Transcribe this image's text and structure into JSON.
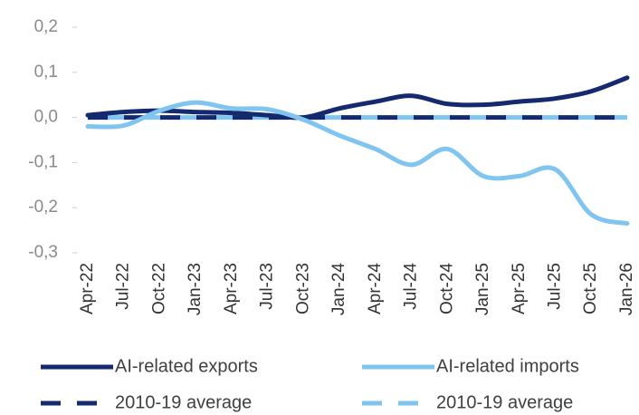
{
  "chart_data": {
    "type": "line",
    "categories": [
      "Apr-22",
      "Jul-22",
      "Oct-22",
      "Jan-23",
      "Apr-23",
      "Jul-23",
      "Oct-23",
      "Jan-24",
      "Apr-24",
      "Jul-24",
      "Oct-24",
      "Jan-25",
      "Apr-25",
      "Jul-25",
      "Oct-25",
      "Jan-26"
    ],
    "series": [
      {
        "name": "AI-related exports",
        "color": "#15296e",
        "dashed": false,
        "values": [
          0.005,
          0.012,
          0.015,
          0.012,
          0.01,
          0.005,
          0.0,
          0.02,
          0.035,
          0.048,
          0.03,
          0.028,
          0.035,
          0.042,
          0.058,
          0.088
        ]
      },
      {
        "name": "AI-related imports",
        "color": "#80c4f0",
        "dashed": false,
        "values": [
          -0.02,
          -0.018,
          0.015,
          0.033,
          0.02,
          0.018,
          -0.005,
          -0.04,
          -0.07,
          -0.105,
          -0.07,
          -0.13,
          -0.13,
          -0.115,
          -0.215,
          -0.235
        ]
      },
      {
        "name": "2010-19 average",
        "color": "#15296e",
        "dashed": true,
        "values": [
          0,
          0,
          0,
          0,
          0,
          0,
          0,
          0,
          0,
          0,
          0,
          0,
          0,
          0,
          0,
          0
        ]
      },
      {
        "name": "2010-19 average",
        "color": "#80c4f0",
        "dashed": true,
        "values": [
          0,
          0,
          0,
          0,
          0,
          0,
          0,
          0,
          0,
          0,
          0,
          0,
          0,
          0,
          0,
          0
        ]
      }
    ],
    "ylim": [
      -0.3,
      0.2
    ],
    "yticks": [
      {
        "value": 0.2,
        "label": "0,2"
      },
      {
        "value": 0.1,
        "label": "0,1"
      },
      {
        "value": 0,
        "label": "0,0"
      },
      {
        "value": -0.1,
        "label": "-0,1"
      },
      {
        "value": -0.2,
        "label": "-0,2"
      },
      {
        "value": -0.3,
        "label": "-0,3"
      }
    ],
    "grid": false
  }
}
